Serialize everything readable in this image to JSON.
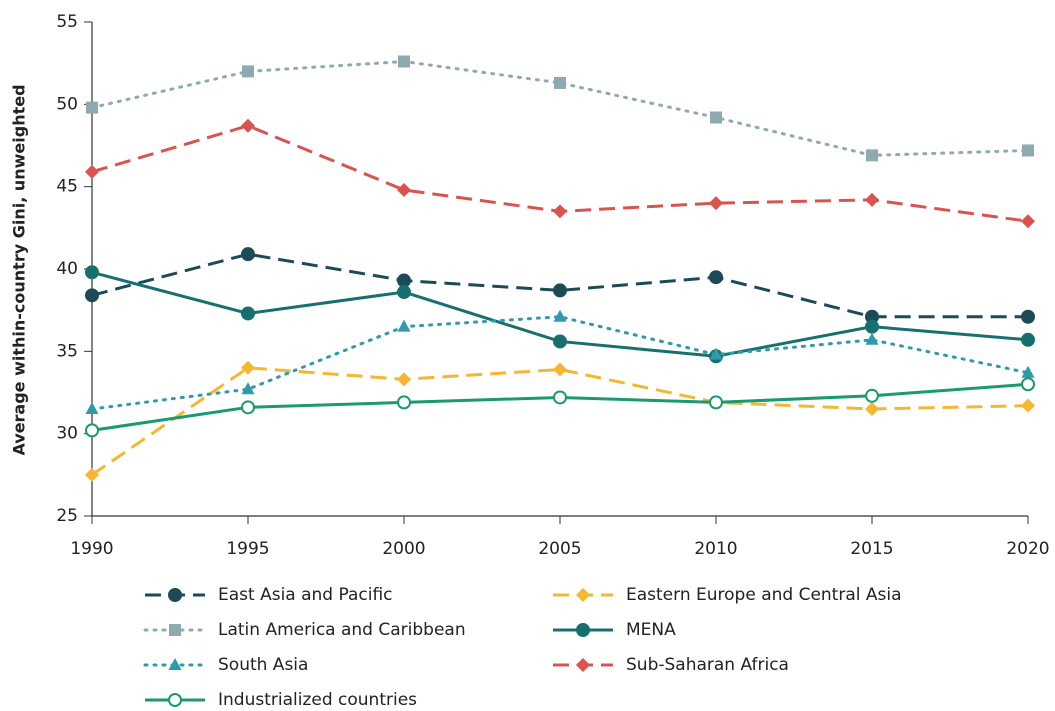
{
  "chart_data": {
    "type": "line",
    "y_label": "Average within-country Gini, unweighted",
    "x": [
      1990,
      1995,
      2000,
      2005,
      2010,
      2015,
      2020
    ],
    "xlim": [
      1990,
      2020
    ],
    "xticks": [
      1990,
      1995,
      2000,
      2005,
      2010,
      2015,
      2020
    ],
    "ylim": [
      25,
      55
    ],
    "yticks": [
      25,
      30,
      35,
      40,
      45,
      50,
      55
    ],
    "grid": false,
    "series": [
      {
        "name": "East Asia and Pacific",
        "color": "#1d4a57",
        "dash": "dashed",
        "marker": "circle",
        "values": [
          38.4,
          40.9,
          39.3,
          38.7,
          39.5,
          37.1,
          37.1
        ]
      },
      {
        "name": "Eastern Europe and Central Asia",
        "color": "#f5b731",
        "dash": "dashed",
        "marker": "diamond",
        "values": [
          27.5,
          34.0,
          33.3,
          33.9,
          31.9,
          31.5,
          31.7
        ]
      },
      {
        "name": "Latin America and Caribbean",
        "color": "#8fa9b0",
        "dash": "dotted",
        "marker": "square",
        "values": [
          49.8,
          52.0,
          52.6,
          51.3,
          49.2,
          46.9,
          47.2
        ]
      },
      {
        "name": "MENA",
        "color": "#17706f",
        "dash": "solid",
        "marker": "circle",
        "values": [
          39.8,
          37.3,
          38.6,
          35.6,
          34.7,
          36.5,
          35.7
        ]
      },
      {
        "name": "South Asia",
        "color": "#2e9aab",
        "dash": "dotted",
        "marker": "triangle",
        "values": [
          31.5,
          32.7,
          36.5,
          37.1,
          34.8,
          35.7,
          33.7
        ]
      },
      {
        "name": "Sub-Saharan Africa",
        "color": "#d9534f",
        "dash": "dashed",
        "marker": "diamond",
        "values": [
          45.9,
          48.7,
          44.8,
          43.5,
          44.0,
          44.2,
          42.9
        ]
      },
      {
        "name": "Industrialized countries",
        "color": "#1a9a6f",
        "dash": "solid",
        "marker": "hollow-circle",
        "values": [
          30.2,
          31.6,
          31.9,
          32.2,
          31.9,
          32.3,
          33.0
        ]
      }
    ]
  }
}
